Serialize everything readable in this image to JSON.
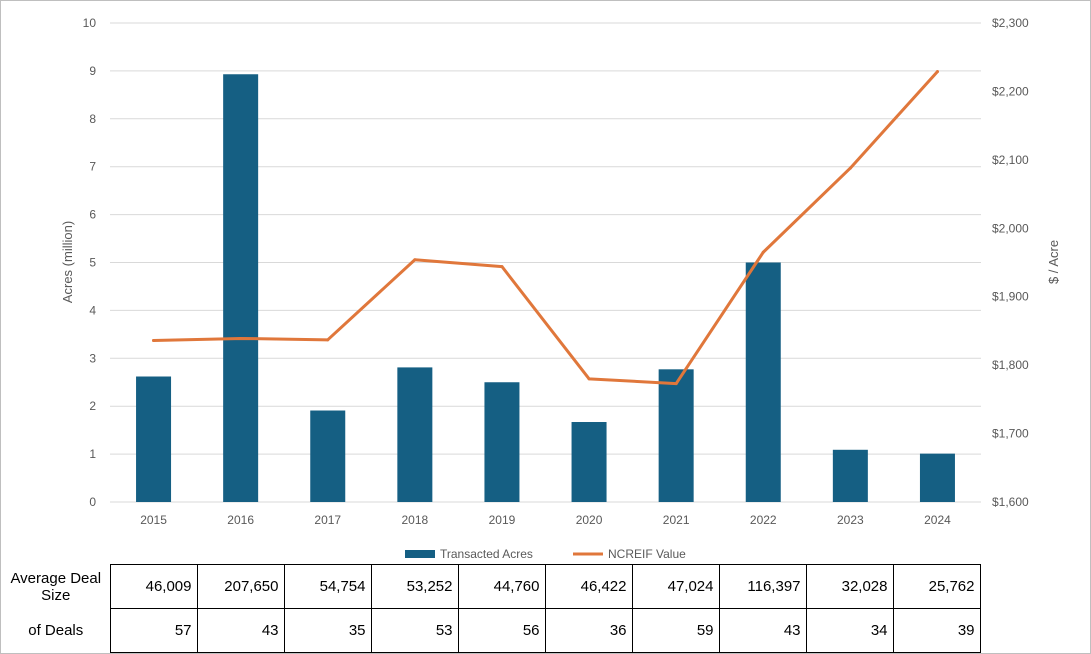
{
  "chart_data": {
    "type": "bar",
    "categories": [
      "2015",
      "2016",
      "2017",
      "2018",
      "2019",
      "2020",
      "2021",
      "2022",
      "2023",
      "2024"
    ],
    "series": [
      {
        "name": "Transacted Acres",
        "type": "bar",
        "axis": "left",
        "color": "#155f83",
        "values": [
          2.62,
          8.93,
          1.91,
          2.81,
          2.5,
          1.67,
          2.77,
          5.0,
          1.09,
          1.01
        ]
      },
      {
        "name": "NCREIF Value",
        "type": "line",
        "axis": "right",
        "color": "#e0773b",
        "values": [
          1836,
          1839,
          1837,
          1954,
          1944,
          1780,
          1773,
          1965,
          2088,
          2229
        ]
      }
    ],
    "ylabel": "Acres (million)",
    "y2label": "$ / Acre",
    "ylim": [
      0,
      10
    ],
    "y2lim": [
      1600,
      2300
    ],
    "yticks": [
      "0",
      "1",
      "2",
      "3",
      "4",
      "5",
      "6",
      "7",
      "8",
      "9",
      "10"
    ],
    "y2ticks": [
      "$1,600",
      "$1,700",
      "$1,800",
      "$1,900",
      "$2,000",
      "$2,100",
      "$2,200",
      "$2,300"
    ],
    "grid": true,
    "legend": "bottom"
  },
  "table": {
    "rows": [
      {
        "label": "Average Deal Size",
        "values": [
          "46,009",
          "207,650",
          "54,754",
          "53,252",
          "44,760",
          "46,422",
          "47,024",
          "116,397",
          "32,028",
          "25,762"
        ]
      },
      {
        "label": "of Deals",
        "values": [
          "57",
          "43",
          "35",
          "53",
          "56",
          "36",
          "59",
          "43",
          "34",
          "39"
        ]
      }
    ]
  }
}
